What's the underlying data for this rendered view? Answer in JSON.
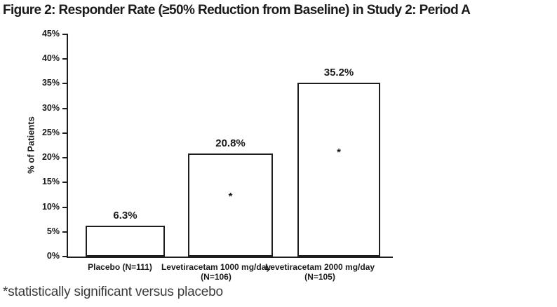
{
  "figure": {
    "title": "Figure 2: Responder Rate (≥50% Reduction from Baseline) in Study 2: Period A",
    "footnote": "*statistically significant versus placebo"
  },
  "chart_data": {
    "type": "bar",
    "title": "Figure 2: Responder Rate (≥50% Reduction from Baseline) in Study 2: Period A",
    "xlabel": "",
    "ylabel": "% of Patients",
    "ylim": [
      0,
      45
    ],
    "ytick_step": 5,
    "ytick_labels": [
      "0%",
      "5%",
      "10%",
      "15%",
      "20%",
      "25%",
      "30%",
      "35%",
      "40%",
      "45%"
    ],
    "grid": false,
    "legend": false,
    "bar_fill": "#ffffff",
    "bar_border": "#1e1e1e",
    "significance_marker": "*",
    "categories": [
      "Placebo (N=111)",
      "Levetiracetam 1000 mg/day (N=106)",
      "Levetiracetam 2000 mg/day (N=105)"
    ],
    "bars": [
      {
        "label_line1": "Placebo (N=111)",
        "label_line2": "",
        "value": 6.3,
        "value_label": "6.3%",
        "significant": false
      },
      {
        "label_line1": "Levetiracetam 1000 mg/day",
        "label_line2": "(N=106)",
        "value": 20.8,
        "value_label": "20.8%",
        "significant": true
      },
      {
        "label_line1": "Levetiracetam 2000 mg/day",
        "label_line2": "(N=105)",
        "value": 35.2,
        "value_label": "35.2%",
        "significant": true
      }
    ],
    "footnote": "*statistically significant versus placebo"
  }
}
